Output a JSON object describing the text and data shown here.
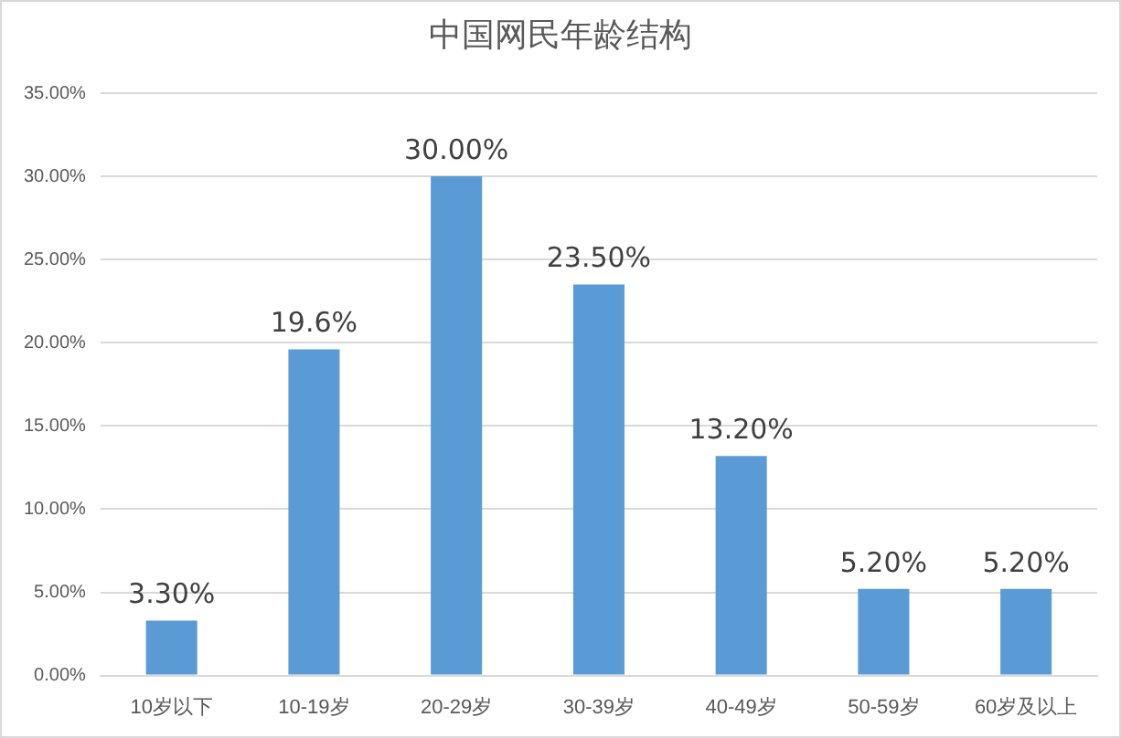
{
  "chart_data": {
    "type": "bar",
    "title": "中国网民年龄结构",
    "categories": [
      "10岁以下",
      "10-19岁",
      "20-29岁",
      "30-39岁",
      "40-49岁",
      "50-59岁",
      "60岁及以上"
    ],
    "values": [
      3.3,
      19.6,
      30.0,
      23.5,
      13.2,
      5.2,
      5.2
    ],
    "value_labels": [
      "3.30%",
      "19.6%",
      "30.00%",
      "23.50%",
      "13.20%",
      "5.20%",
      "5.20%"
    ],
    "color": "#5b9bd5",
    "ylim": [
      0,
      35
    ],
    "yticks": [
      {
        "value": 0,
        "label": "0.00%"
      },
      {
        "value": 5,
        "label": "5.00%"
      },
      {
        "value": 10,
        "label": "10.00%"
      },
      {
        "value": 15,
        "label": "15.00%"
      },
      {
        "value": 20,
        "label": "20.00%"
      },
      {
        "value": 25,
        "label": "25.00%"
      },
      {
        "value": 30,
        "label": "30.00%"
      },
      {
        "value": 35,
        "label": "35.00%"
      }
    ],
    "grid": "y",
    "legend": false
  }
}
